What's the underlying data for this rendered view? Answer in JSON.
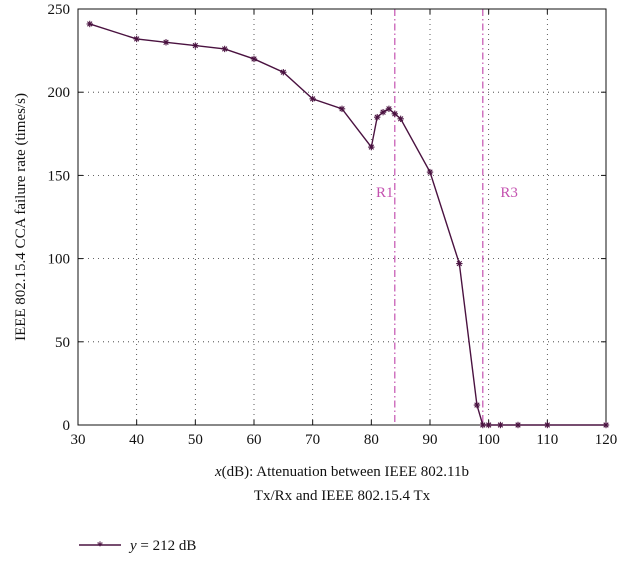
{
  "chart_data": {
    "type": "line",
    "xlabel_math": "x",
    "xlabel_line1": "(dB): Attenuation between IEEE 802.11b",
    "xlabel_line2": "Tx/Rx and IEEE 802.15.4 Tx",
    "ylabel": "IEEE 802.15.4 CCA failure rate (times/s)",
    "xlim": [
      30,
      120
    ],
    "ylim": [
      0,
      250
    ],
    "xticks": [
      30,
      40,
      50,
      60,
      70,
      80,
      90,
      100,
      110,
      120
    ],
    "yticks": [
      0,
      50,
      100,
      150,
      200,
      250
    ],
    "grid": true,
    "legend_position": "bottom-left, below plot",
    "series": [
      {
        "name": "y = 212 dB",
        "name_math": "y",
        "name_rest": " = 212 dB",
        "color": "#4a1240",
        "marker": "asterisk",
        "x": [
          32,
          40,
          45,
          50,
          55,
          60,
          65,
          70,
          75,
          80,
          81,
          82,
          83,
          84,
          85,
          90,
          95,
          98,
          99,
          100,
          102,
          105,
          110,
          120
        ],
        "y": [
          241,
          232,
          230,
          228,
          226,
          220,
          212,
          196,
          190,
          167,
          185,
          188,
          190,
          187,
          184,
          152,
          97,
          12,
          0,
          0,
          0,
          0,
          0,
          0
        ]
      }
    ],
    "annotations": [
      {
        "label": "R1",
        "x": 84,
        "label_x": 80.8,
        "label_y": 137,
        "color": "#c452b0"
      },
      {
        "label": "R3",
        "x": 99,
        "label_x": 102,
        "label_y": 137,
        "color": "#c452b0"
      }
    ]
  }
}
